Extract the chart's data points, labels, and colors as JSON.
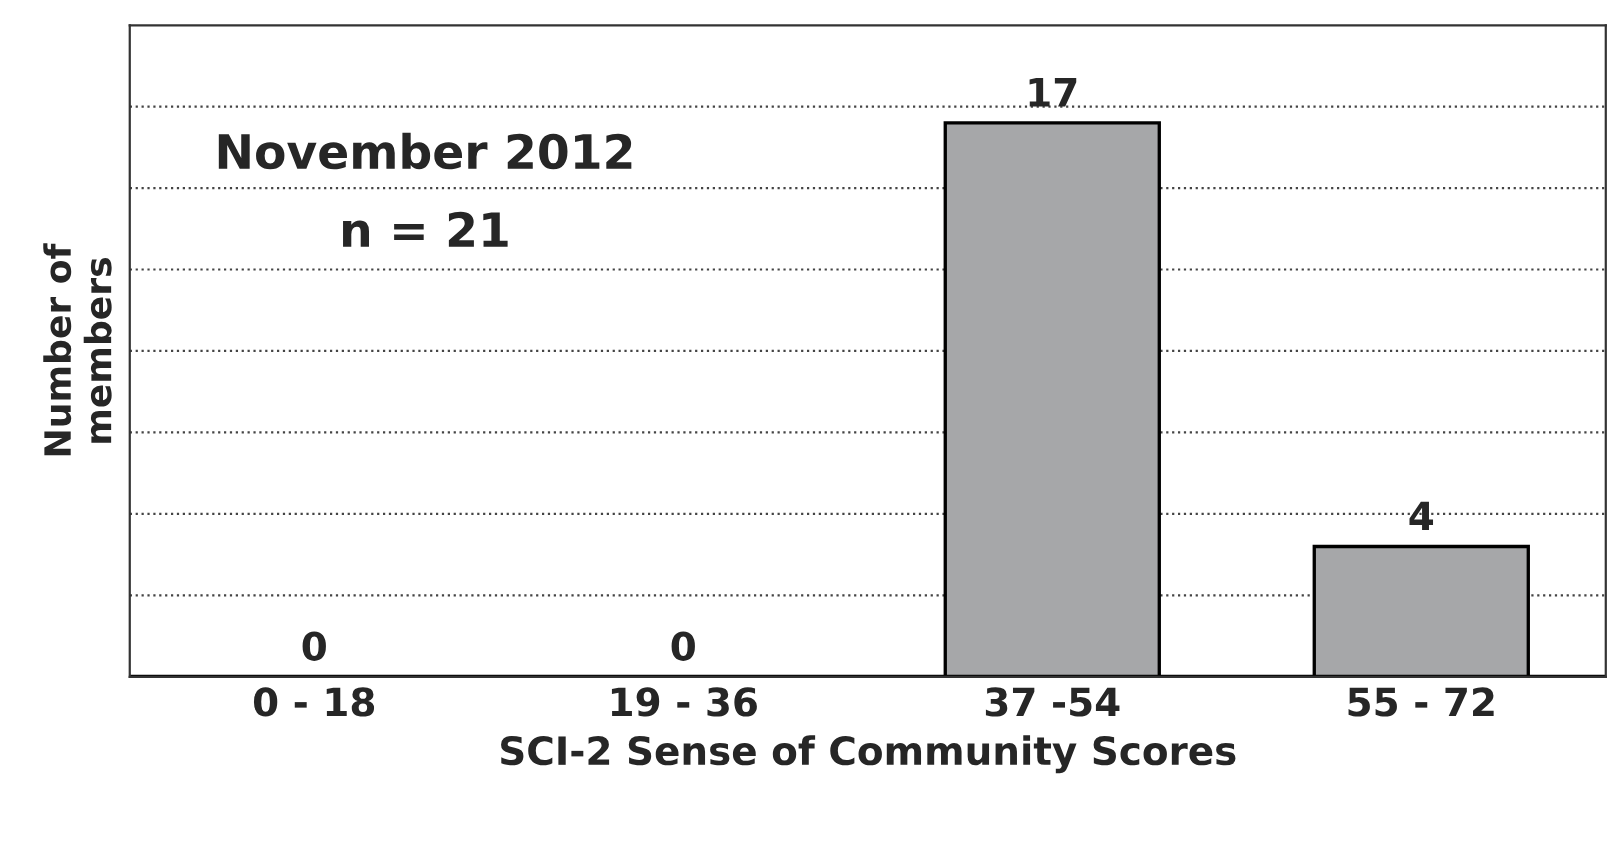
{
  "chart_data": {
    "type": "bar",
    "title": "November 2012",
    "subtitle": "n = 21",
    "xlabel": "SCI-2 Sense of Community Scores",
    "ylabel": "Number of\nmembers",
    "categories": [
      "0 - 18",
      "19 - 36",
      "37 -54",
      "55 - 72"
    ],
    "values": [
      0,
      0,
      17,
      4
    ],
    "color": "#a6a7a9",
    "data_labels": true,
    "grid": "y",
    "tick_labels": "x"
  }
}
